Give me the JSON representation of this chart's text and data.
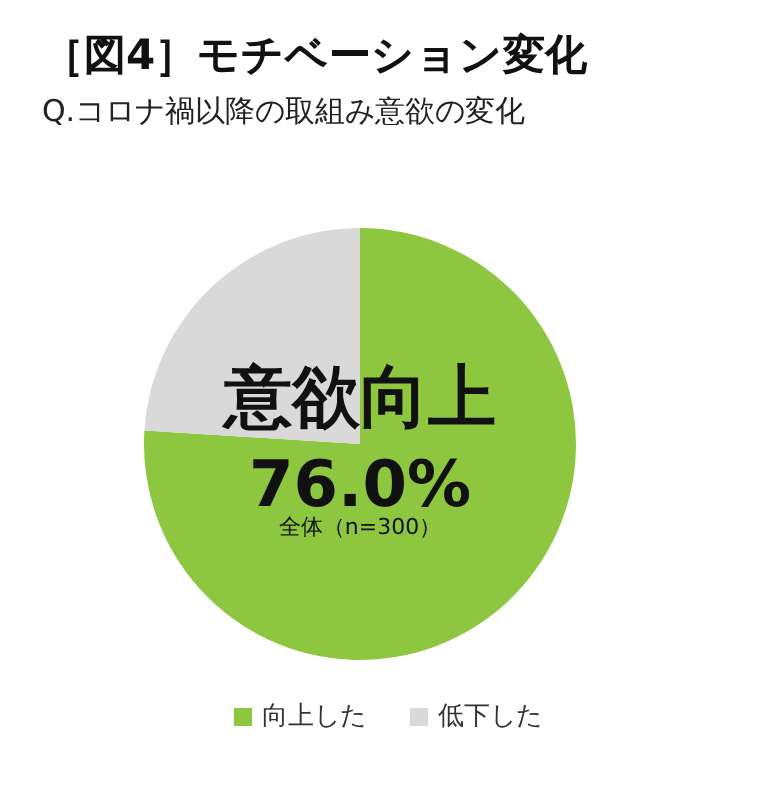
{
  "chart_data": {
    "type": "pie",
    "title": "［図4］モチベーション変化",
    "subtitle": "Q.コロナ禍以降の取組み意欲の変化",
    "categories": [
      "向上した",
      "低下した"
    ],
    "values": [
      76.0,
      24.0
    ],
    "colors": [
      "#8dc63f",
      "#d9d9d9"
    ],
    "annotations": [
      "意欲向上",
      "76.0%",
      "全体（n=300）"
    ],
    "legend": "bottom"
  }
}
